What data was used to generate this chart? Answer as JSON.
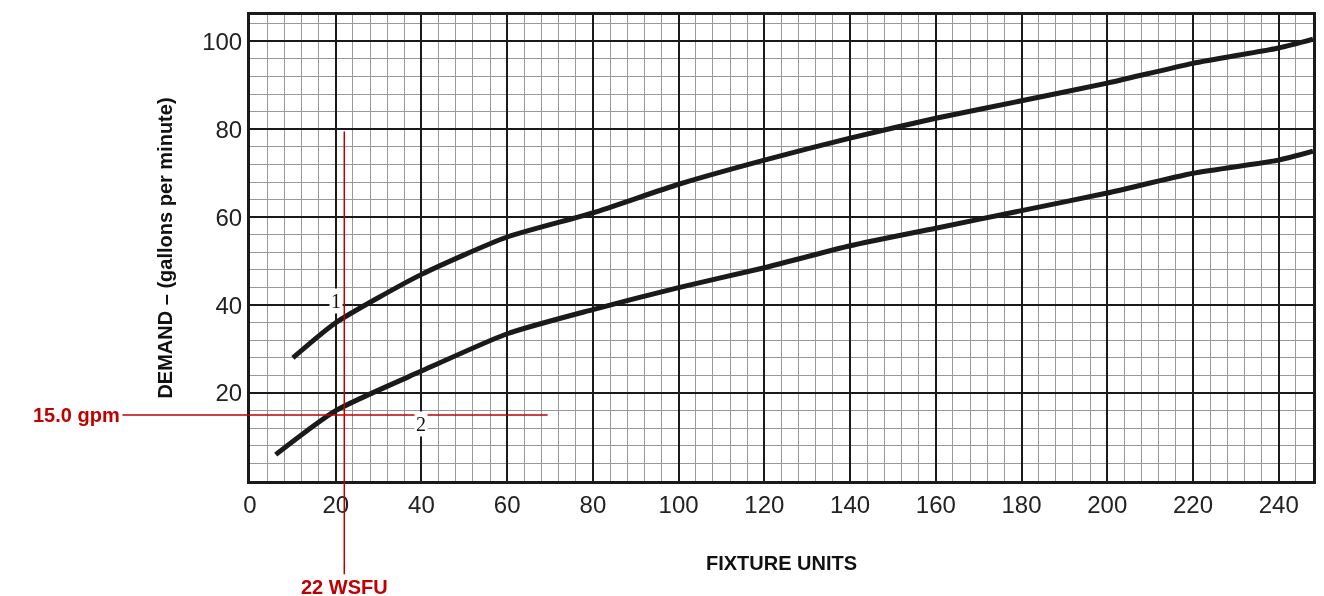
{
  "chart_data": {
    "type": "line",
    "xlabel": "FIXTURE UNITS",
    "ylabel": "DEMAND – (gallons per minute)",
    "xlim": [
      0,
      248
    ],
    "ylim": [
      0,
      106
    ],
    "xticks": [
      0,
      20,
      40,
      60,
      80,
      100,
      120,
      140,
      160,
      180,
      200,
      220,
      240
    ],
    "yticks": [
      {
        "value": 0,
        "label": null
      },
      20,
      40,
      60,
      80,
      100
    ],
    "grid": true,
    "marker": "none",
    "line_style": "solid",
    "series": [
      {
        "color": "#1a1a1a",
        "x": [
          10,
          20,
          40,
          60,
          80,
          100,
          120,
          140,
          160,
          180,
          200,
          220,
          240,
          248
        ],
        "values": [
          28,
          36,
          47,
          55.5,
          61,
          67.5,
          73,
          78,
          82.5,
          86.5,
          90.5,
          95,
          98.5,
          100.5
        ]
      },
      {
        "color": "#1a1a1a",
        "x": [
          6,
          20,
          40,
          60,
          80,
          100,
          120,
          140,
          160,
          180,
          200,
          220,
          240,
          248
        ],
        "values": [
          6,
          16,
          25,
          33.5,
          39,
          44,
          48.5,
          53.5,
          57.5,
          61.5,
          65.5,
          70,
          73,
          75
        ]
      }
    ],
    "ref_lines": [
      {
        "axis": "x",
        "value": 22,
        "label": "22 WSFU",
        "color": "#c00000"
      },
      {
        "axis": "y",
        "value": 15,
        "label": "15.0 gpm",
        "color": "#c00000"
      }
    ],
    "annotations": [
      {
        "text": "1",
        "x": 20,
        "y": 41
      },
      {
        "text": "2",
        "x": 40,
        "y": 13
      }
    ]
  }
}
